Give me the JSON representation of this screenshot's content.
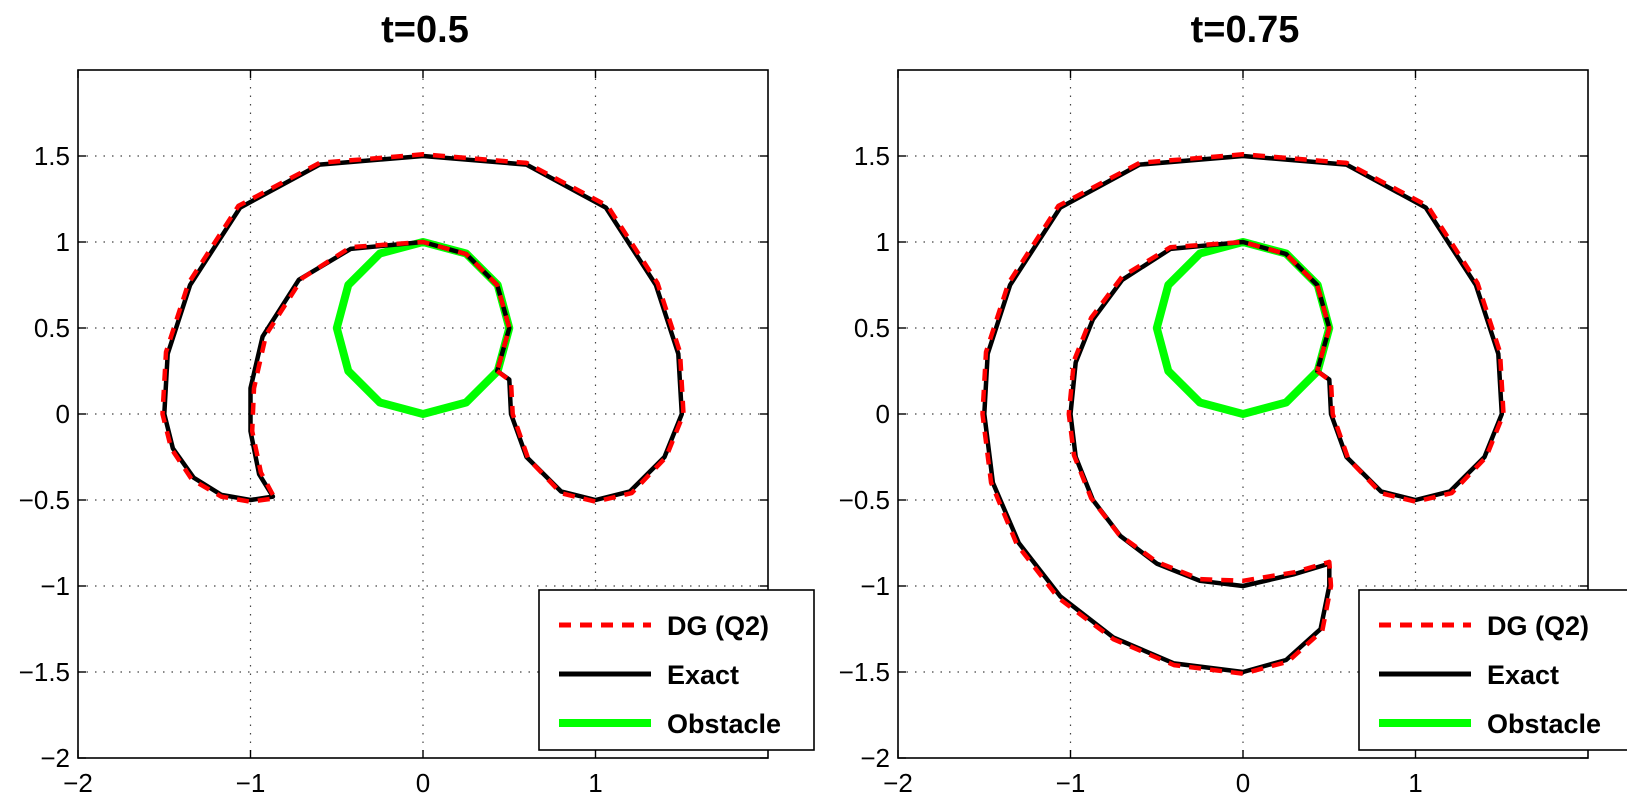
{
  "colors": {
    "dg": "#ff0000",
    "exact": "#000000",
    "obstacle": "#00ff00"
  },
  "chart_data": [
    {
      "type": "line",
      "title": "t=0.5",
      "xlim": [
        -2,
        2
      ],
      "ylim": [
        -2,
        2
      ],
      "xticks": [
        -2,
        -1,
        0,
        1
      ],
      "yticks": [
        -2,
        -1.5,
        -1,
        -0.5,
        0,
        0.5,
        1,
        1.5
      ],
      "xtick_labels": [
        "−2",
        "−1",
        "0",
        "1"
      ],
      "ytick_labels": [
        "−2",
        "−1.5",
        "−1",
        "−0.5",
        "0",
        "0.5",
        "1",
        "1.5"
      ],
      "grid": true,
      "legend": {
        "position": "bottom-right",
        "entries": [
          "DG (Q2)",
          "Exact",
          "Obstacle"
        ]
      },
      "series": [
        {
          "name": "Obstacle",
          "color": "#00ff00",
          "style": "solid",
          "points": [
            [
              0.0,
              0.0
            ],
            [
              0.25,
              0.067
            ],
            [
              0.433,
              0.25
            ],
            [
              0.5,
              0.5
            ],
            [
              0.433,
              0.75
            ],
            [
              0.25,
              0.933
            ],
            [
              0.0,
              1.0
            ],
            [
              -0.25,
              0.933
            ],
            [
              -0.433,
              0.75
            ],
            [
              -0.5,
              0.5
            ],
            [
              -0.433,
              0.25
            ],
            [
              -0.25,
              0.067
            ],
            [
              0.0,
              0.0
            ]
          ]
        },
        {
          "name": "Exact",
          "color": "#000000",
          "style": "solid",
          "points": [
            [
              0.43,
              0.25
            ],
            [
              0.5,
              0.2
            ],
            [
              0.51,
              0.0
            ],
            [
              0.6,
              -0.25
            ],
            [
              0.8,
              -0.45
            ],
            [
              1.0,
              -0.5
            ],
            [
              1.2,
              -0.45
            ],
            [
              1.4,
              -0.25
            ],
            [
              1.5,
              0.0
            ],
            [
              1.48,
              0.35
            ],
            [
              1.35,
              0.75
            ],
            [
              1.06,
              1.2
            ],
            [
              0.6,
              1.45
            ],
            [
              0.0,
              1.5
            ],
            [
              -0.6,
              1.45
            ],
            [
              -1.06,
              1.2
            ],
            [
              -1.35,
              0.75
            ],
            [
              -1.48,
              0.35
            ],
            [
              -1.5,
              0.0
            ],
            [
              -1.45,
              -0.2
            ],
            [
              -1.33,
              -0.37
            ],
            [
              -1.17,
              -0.47
            ],
            [
              -1.0,
              -0.5
            ],
            [
              -0.87,
              -0.48
            ],
            [
              -0.95,
              -0.35
            ],
            [
              -1.0,
              -0.1
            ],
            [
              -1.0,
              0.15
            ],
            [
              -0.93,
              0.45
            ],
            [
              -0.72,
              0.78
            ],
            [
              -0.42,
              0.96
            ],
            [
              0.0,
              1.0
            ],
            [
              0.25,
              0.93
            ],
            [
              0.43,
              0.75
            ],
            [
              0.5,
              0.5
            ],
            [
              0.43,
              0.25
            ]
          ]
        },
        {
          "name": "DG (Q2)",
          "color": "#ff0000",
          "style": "dashed",
          "points": [
            [
              0.43,
              0.25
            ],
            [
              0.51,
              0.19
            ],
            [
              0.52,
              0.0
            ],
            [
              0.61,
              -0.26
            ],
            [
              0.8,
              -0.46
            ],
            [
              1.0,
              -0.51
            ],
            [
              1.21,
              -0.46
            ],
            [
              1.41,
              -0.25
            ],
            [
              1.51,
              0.0
            ],
            [
              1.49,
              0.36
            ],
            [
              1.36,
              0.76
            ],
            [
              1.07,
              1.21
            ],
            [
              0.6,
              1.46
            ],
            [
              0.0,
              1.51
            ],
            [
              -0.6,
              1.46
            ],
            [
              -1.07,
              1.21
            ],
            [
              -1.36,
              0.76
            ],
            [
              -1.49,
              0.36
            ],
            [
              -1.51,
              0.0
            ],
            [
              -1.46,
              -0.2
            ],
            [
              -1.34,
              -0.38
            ],
            [
              -1.17,
              -0.48
            ],
            [
              -1.0,
              -0.51
            ],
            [
              -0.86,
              -0.49
            ],
            [
              -0.94,
              -0.34
            ],
            [
              -0.99,
              -0.1
            ],
            [
              -0.98,
              0.15
            ],
            [
              -0.91,
              0.46
            ],
            [
              -0.7,
              0.79
            ],
            [
              -0.42,
              0.97
            ],
            [
              0.0,
              1.0
            ],
            [
              0.25,
              0.93
            ],
            [
              0.43,
              0.75
            ],
            [
              0.5,
              0.5
            ],
            [
              0.43,
              0.25
            ]
          ]
        }
      ]
    },
    {
      "type": "line",
      "title": "t=0.75",
      "xlim": [
        -2,
        2
      ],
      "ylim": [
        -2,
        2
      ],
      "xticks": [
        -2,
        -1,
        0,
        1
      ],
      "yticks": [
        -2,
        -1.5,
        -1,
        -0.5,
        0,
        0.5,
        1,
        1.5
      ],
      "xtick_labels": [
        "−2",
        "−1",
        "0",
        "1"
      ],
      "ytick_labels": [
        "−2",
        "−1.5",
        "−1",
        "−0.5",
        "0",
        "0.5",
        "1",
        "1.5"
      ],
      "grid": true,
      "legend": {
        "position": "bottom-right",
        "entries": [
          "DG (Q2)",
          "Exact",
          "Obstacle"
        ]
      },
      "series": [
        {
          "name": "Obstacle",
          "color": "#00ff00",
          "style": "solid",
          "points": [
            [
              0.0,
              0.0
            ],
            [
              0.25,
              0.067
            ],
            [
              0.433,
              0.25
            ],
            [
              0.5,
              0.5
            ],
            [
              0.433,
              0.75
            ],
            [
              0.25,
              0.933
            ],
            [
              0.0,
              1.0
            ],
            [
              -0.25,
              0.933
            ],
            [
              -0.433,
              0.75
            ],
            [
              -0.5,
              0.5
            ],
            [
              -0.433,
              0.25
            ],
            [
              -0.25,
              0.067
            ],
            [
              0.0,
              0.0
            ]
          ]
        },
        {
          "name": "Exact",
          "color": "#000000",
          "style": "solid",
          "points": [
            [
              0.43,
              0.25
            ],
            [
              0.5,
              0.2
            ],
            [
              0.51,
              0.0
            ],
            [
              0.6,
              -0.25
            ],
            [
              0.8,
              -0.45
            ],
            [
              1.0,
              -0.5
            ],
            [
              1.2,
              -0.45
            ],
            [
              1.4,
              -0.25
            ],
            [
              1.5,
              0.0
            ],
            [
              1.48,
              0.35
            ],
            [
              1.35,
              0.75
            ],
            [
              1.06,
              1.2
            ],
            [
              0.6,
              1.45
            ],
            [
              0.0,
              1.5
            ],
            [
              -0.6,
              1.45
            ],
            [
              -1.06,
              1.2
            ],
            [
              -1.35,
              0.75
            ],
            [
              -1.48,
              0.35
            ],
            [
              -1.5,
              0.0
            ],
            [
              -1.45,
              -0.4
            ],
            [
              -1.3,
              -0.75
            ],
            [
              -1.06,
              -1.06
            ],
            [
              -0.75,
              -1.3
            ],
            [
              -0.4,
              -1.45
            ],
            [
              0.0,
              -1.5
            ],
            [
              0.25,
              -1.43
            ],
            [
              0.45,
              -1.25
            ],
            [
              0.5,
              -1.0
            ],
            [
              0.5,
              -0.87
            ],
            [
              0.3,
              -0.93
            ],
            [
              0.0,
              -1.0
            ],
            [
              -0.25,
              -0.97
            ],
            [
              -0.5,
              -0.87
            ],
            [
              -0.71,
              -0.71
            ],
            [
              -0.87,
              -0.5
            ],
            [
              -0.97,
              -0.25
            ],
            [
              -1.0,
              0.0
            ],
            [
              -0.97,
              0.3
            ],
            [
              -0.87,
              0.55
            ],
            [
              -0.7,
              0.78
            ],
            [
              -0.42,
              0.96
            ],
            [
              0.0,
              1.0
            ],
            [
              0.25,
              0.93
            ],
            [
              0.43,
              0.75
            ],
            [
              0.5,
              0.5
            ],
            [
              0.43,
              0.25
            ]
          ]
        },
        {
          "name": "DG (Q2)",
          "color": "#ff0000",
          "style": "dashed",
          "points": [
            [
              0.43,
              0.25
            ],
            [
              0.51,
              0.19
            ],
            [
              0.52,
              0.0
            ],
            [
              0.61,
              -0.26
            ],
            [
              0.8,
              -0.46
            ],
            [
              1.0,
              -0.51
            ],
            [
              1.21,
              -0.46
            ],
            [
              1.41,
              -0.25
            ],
            [
              1.51,
              0.0
            ],
            [
              1.49,
              0.36
            ],
            [
              1.36,
              0.76
            ],
            [
              1.07,
              1.21
            ],
            [
              0.6,
              1.46
            ],
            [
              0.0,
              1.51
            ],
            [
              -0.6,
              1.46
            ],
            [
              -1.07,
              1.21
            ],
            [
              -1.36,
              0.76
            ],
            [
              -1.49,
              0.36
            ],
            [
              -1.51,
              0.0
            ],
            [
              -1.46,
              -0.4
            ],
            [
              -1.31,
              -0.76
            ],
            [
              -1.07,
              -1.07
            ],
            [
              -0.75,
              -1.31
            ],
            [
              -0.4,
              -1.46
            ],
            [
              0.0,
              -1.51
            ],
            [
              0.26,
              -1.44
            ],
            [
              0.46,
              -1.26
            ],
            [
              0.51,
              -1.0
            ],
            [
              0.5,
              -0.86
            ],
            [
              0.3,
              -0.92
            ],
            [
              0.0,
              -0.97
            ],
            [
              -0.25,
              -0.96
            ],
            [
              -0.5,
              -0.86
            ],
            [
              -0.72,
              -0.7
            ],
            [
              -0.88,
              -0.49
            ],
            [
              -0.98,
              -0.24
            ],
            [
              -1.01,
              0.0
            ],
            [
              -0.98,
              0.31
            ],
            [
              -0.88,
              0.56
            ],
            [
              -0.7,
              0.8
            ],
            [
              -0.42,
              0.97
            ],
            [
              0.0,
              1.0
            ],
            [
              0.25,
              0.93
            ],
            [
              0.43,
              0.75
            ],
            [
              0.5,
              0.5
            ],
            [
              0.43,
              0.25
            ]
          ]
        }
      ]
    }
  ]
}
